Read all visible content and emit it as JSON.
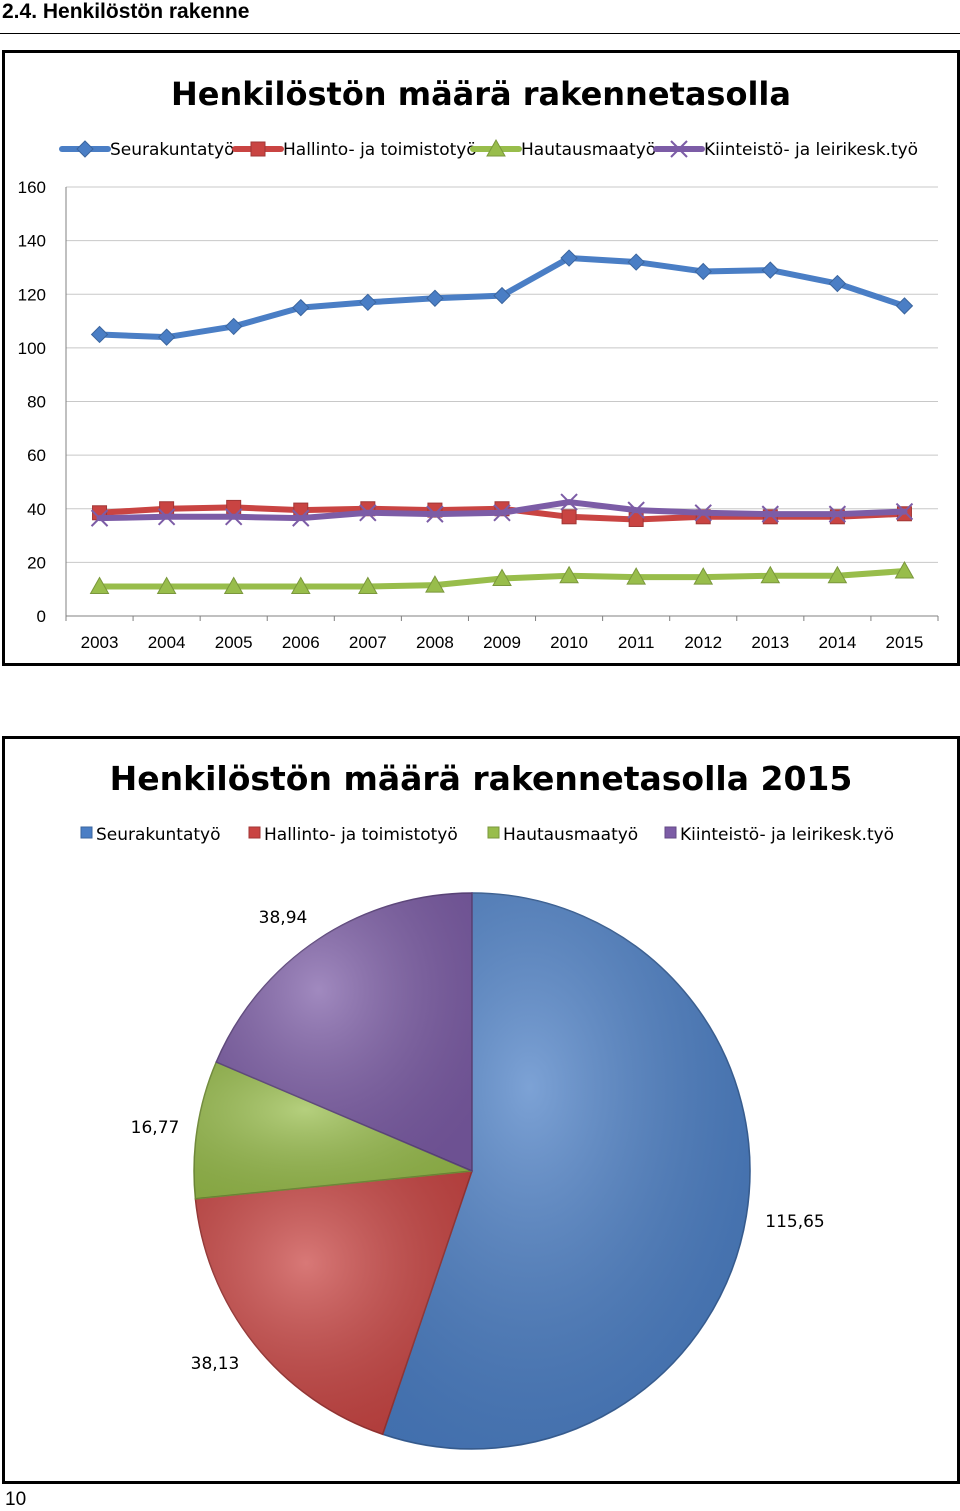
{
  "page": {
    "section_heading": "2.4. Henkilöstön rakenne",
    "page_number": "10"
  },
  "colors": {
    "Seurakuntatyö": "#4a7ec5",
    "Hallinto- ja toimistotyö": "#c94442",
    "Hautausmaatyö": "#98bd4b",
    "Kiinteistö- ja leirikesk.työ": "#7c5ca6"
  },
  "chart_data": [
    {
      "type": "line",
      "title": "Henkilöstön määrä rakennetasolla",
      "xlabel": "",
      "ylabel": "",
      "categories": [
        "2003",
        "2004",
        "2005",
        "2006",
        "2007",
        "2008",
        "2009",
        "2010",
        "2011",
        "2012",
        "2013",
        "2014",
        "2015"
      ],
      "ylim": [
        0,
        160
      ],
      "yticks": [
        0,
        20,
        40,
        60,
        80,
        100,
        120,
        140,
        160
      ],
      "grid": true,
      "legend": "top",
      "series": [
        {
          "name": "Seurakuntatyö",
          "marker": "diamond",
          "values": [
            105,
            104,
            108,
            115,
            117,
            118.5,
            119.5,
            133.5,
            132,
            128.5,
            129,
            124,
            115.65
          ]
        },
        {
          "name": "Hallinto- ja toimistotyö",
          "marker": "square",
          "values": [
            38.5,
            40,
            40.5,
            39.5,
            40,
            39.5,
            40,
            37,
            36,
            37,
            37,
            37,
            38.13
          ]
        },
        {
          "name": "Hautausmaatyö",
          "marker": "triangle",
          "values": [
            11,
            11,
            11,
            11,
            11,
            11.5,
            14,
            15,
            14.5,
            14.5,
            15,
            15,
            16.77
          ]
        },
        {
          "name": "Kiinteistö- ja leirikesk.työ",
          "marker": "x",
          "values": [
            36.5,
            37,
            37,
            36.5,
            38.5,
            38,
            38.5,
            42.5,
            39.5,
            38.5,
            38,
            38,
            38.94
          ]
        }
      ]
    },
    {
      "type": "pie",
      "title": "Henkilöstön määrä rakennetasolla 2015",
      "legend": "top",
      "slices": [
        {
          "name": "Seurakuntatyö",
          "value": 115.65,
          "label": "115,65"
        },
        {
          "name": "Hallinto- ja toimistotyö",
          "value": 38.13,
          "label": "38,13"
        },
        {
          "name": "Hautausmaatyö",
          "value": 16.77,
          "label": "16,77"
        },
        {
          "name": "Kiinteistö- ja leirikesk.työ",
          "value": 38.94,
          "label": "38,94"
        }
      ]
    }
  ]
}
